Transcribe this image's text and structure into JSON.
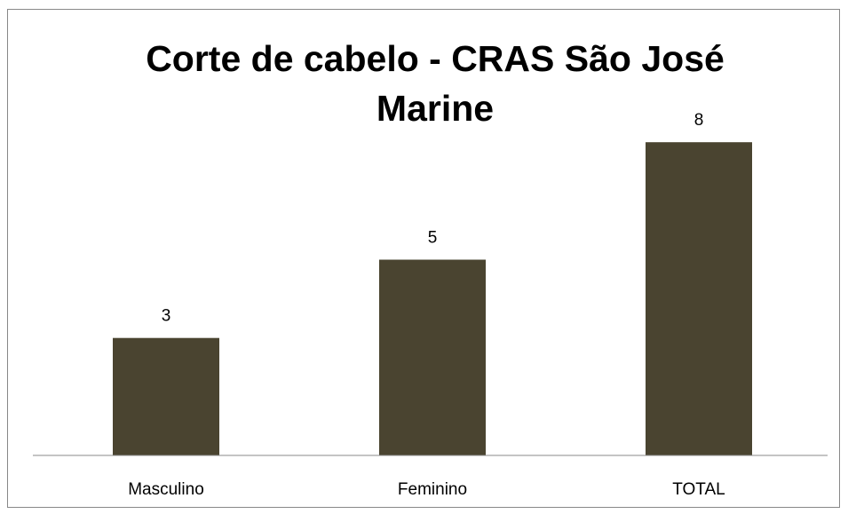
{
  "chart_data": {
    "type": "bar",
    "title": "Corte de cabelo - CRAS São José Marine",
    "categories": [
      "Masculino",
      "Feminino",
      "TOTAL"
    ],
    "values": [
      3,
      5,
      8
    ],
    "color": "#4a4430"
  }
}
